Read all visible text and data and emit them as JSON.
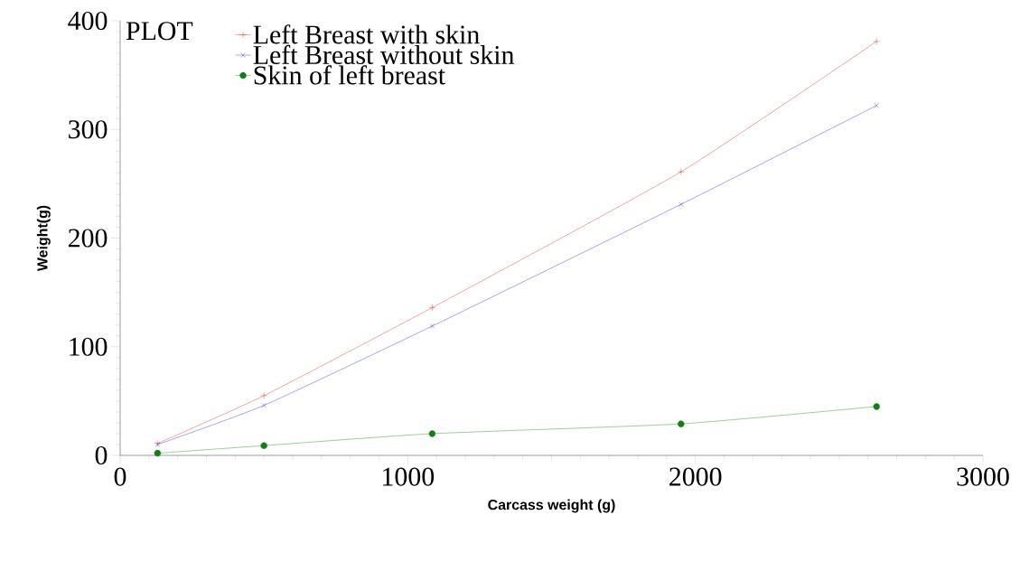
{
  "chart_data": {
    "type": "line",
    "xlabel": "Carcass weight (g)",
    "ylabel": "Weight(g)",
    "legend_title": "PLOT",
    "legend": "top left",
    "x": [
      130,
      500,
      1085,
      1950,
      2630
    ],
    "series": [
      {
        "name": "Left Breast with skin",
        "color": "#d02020",
        "marker": "plus",
        "values": [
          11,
          55,
          136,
          261,
          381
        ]
      },
      {
        "name": "Left Breast without skin",
        "color": "#2020c0",
        "marker": "cross",
        "values": [
          10,
          46,
          119,
          231,
          322
        ]
      },
      {
        "name": "Skin of left breast",
        "color": "#108010",
        "marker": "circle",
        "values": [
          2,
          9,
          20,
          29,
          45
        ]
      }
    ],
    "xlim": [
      0,
      3000
    ],
    "ylim": [
      0,
      400
    ],
    "xticks": [
      0,
      1000,
      2000,
      3000
    ],
    "yticks": [
      0,
      100,
      200,
      300,
      400
    ],
    "grid": false,
    "line_style": "solid"
  }
}
